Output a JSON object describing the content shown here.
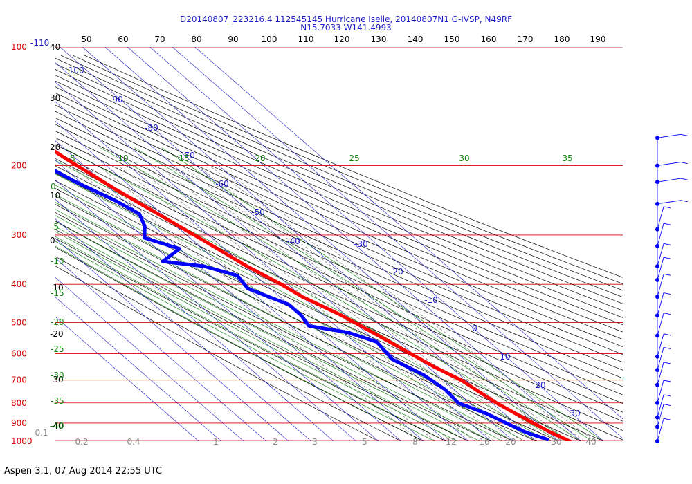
{
  "header": {
    "title_line1": "D20140807_223216.4 112545145 Hurricane Iselle, 20140807N1 G-IVSP, N49RF",
    "title_line2": "N15.7033 W141.4993"
  },
  "footer": {
    "text": "Aspen 3.1, 07 Aug 2014  22:55 UTC"
  },
  "colors": {
    "isobar": "#d40000",
    "dry_adiabat": "#000000",
    "isotherm": "#1a1acc",
    "moist_adiabat": "#118811",
    "mixing_ratio": "#555555",
    "temperature_trace": "#ff0000",
    "dewpoint_trace": "#0000ff",
    "tick_gray": "#888888"
  },
  "chart_data": {
    "type": "skew-t",
    "title": "D20140807_223216.4 112545145 Hurricane Iselle, 20140807N1 G-IVSP, N49RF N15.7033 W141.4993",
    "pressure_levels_hpa": [
      "100",
      "200",
      "300",
      "400",
      "500",
      "600",
      "700",
      "800",
      "900",
      "1000"
    ],
    "top_left_extra_label": "-110",
    "theta_top_labels": [
      "50",
      "60",
      "70",
      "80",
      "90",
      "100",
      "110",
      "120",
      "130",
      "140",
      "150",
      "160",
      "170",
      "180",
      "190"
    ],
    "theta_left_labels": [
      "40",
      "30",
      "20",
      "10",
      "0",
      "-10",
      "-20",
      "-30",
      "-40"
    ],
    "isotherm_labels": [
      "-100",
      "-90",
      "-80",
      "-70",
      "-60",
      "-50",
      "-40",
      "-30",
      "-20",
      "-10",
      "0",
      "10",
      "20",
      "30"
    ],
    "moist_adiabat_top_labels": [
      "5",
      "10",
      "15",
      "20",
      "25",
      "30",
      "35"
    ],
    "moist_adiabat_left_labels": [
      "0",
      "-5",
      "-10",
      "-15",
      "-20",
      "-25",
      "-30",
      "-35",
      "-40"
    ],
    "mixing_ratio_labels": [
      "0.1",
      "0.2",
      "0.4",
      "1",
      "2",
      "3",
      "5",
      "8",
      "12",
      "16",
      "20",
      "30",
      "40"
    ],
    "temperature_profile": [
      {
        "p": 173,
        "t": -57.5
      },
      {
        "p": 195,
        "t": -54
      },
      {
        "p": 230,
        "t": -48
      },
      {
        "p": 270,
        "t": -41
      },
      {
        "p": 310,
        "t": -35
      },
      {
        "p": 360,
        "t": -29
      },
      {
        "p": 400,
        "t": -23
      },
      {
        "p": 430,
        "t": -20
      },
      {
        "p": 480,
        "t": -12
      },
      {
        "p": 540,
        "t": -6
      },
      {
        "p": 600,
        "t": -1
      },
      {
        "p": 650,
        "t": 3
      },
      {
        "p": 700,
        "t": 8
      },
      {
        "p": 750,
        "t": 10
      },
      {
        "p": 800,
        "t": 12
      },
      {
        "p": 850,
        "t": 15
      },
      {
        "p": 900,
        "t": 18
      },
      {
        "p": 950,
        "t": 21
      },
      {
        "p": 1000,
        "t": 25
      }
    ],
    "dewpoint_profile": [
      {
        "p": 200,
        "t": -67
      },
      {
        "p": 220,
        "t": -62
      },
      {
        "p": 245,
        "t": -54
      },
      {
        "p": 265,
        "t": -50
      },
      {
        "p": 285,
        "t": -54
      },
      {
        "p": 305,
        "t": -60
      },
      {
        "p": 325,
        "t": -50
      },
      {
        "p": 350,
        "t": -64
      },
      {
        "p": 360,
        "t": -48
      },
      {
        "p": 380,
        "t": -38
      },
      {
        "p": 410,
        "t": -40
      },
      {
        "p": 430,
        "t": -35
      },
      {
        "p": 450,
        "t": -30
      },
      {
        "p": 480,
        "t": -30
      },
      {
        "p": 510,
        "t": -32
      },
      {
        "p": 530,
        "t": -18
      },
      {
        "p": 560,
        "t": -10
      },
      {
        "p": 620,
        "t": -12
      },
      {
        "p": 680,
        "t": -6
      },
      {
        "p": 740,
        "t": -4
      },
      {
        "p": 800,
        "t": -5
      },
      {
        "p": 850,
        "t": 2
      },
      {
        "p": 900,
        "t": 6
      },
      {
        "p": 950,
        "t": 10
      },
      {
        "p": 990,
        "t": 16
      }
    ],
    "wind_barbs_pressure_hpa": [
      170,
      200,
      220,
      250,
      290,
      320,
      360,
      390,
      430,
      480,
      540,
      610,
      660,
      720,
      800,
      870,
      920,
      1000
    ]
  }
}
